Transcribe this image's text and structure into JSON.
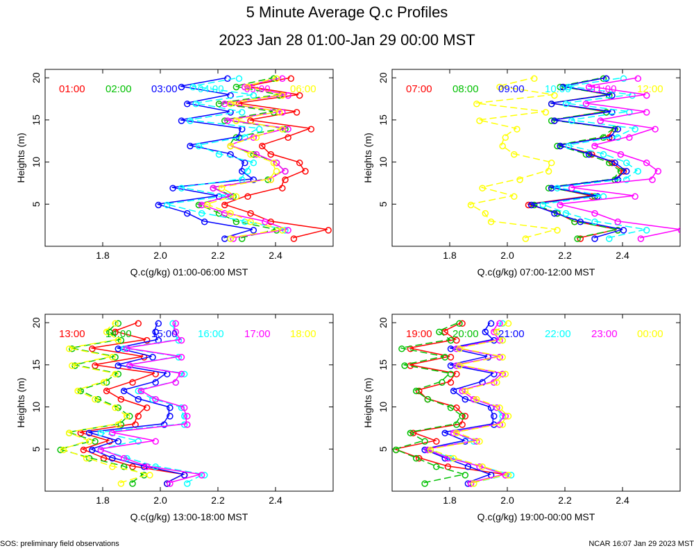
{
  "title": "5 Minute Average Q.c Profiles",
  "subtitle": "2023 Jan 28 01:00-Jan 29 00:00 MST",
  "footer_left": "SOS: preliminary field observations",
  "footer_right": "NCAR 16:07 Jan 29 2023 MST",
  "colors": [
    "#ff0000",
    "#00c000",
    "#0000ff",
    "#00ffff",
    "#ff00ff",
    "#ffff00"
  ],
  "chart_data": [
    {
      "type": "line",
      "xlabel": "Q.c(g/kg) 01:00-06:00 MST",
      "ylabel": "Heights (m)",
      "xlim": [
        1.6,
        2.6
      ],
      "ylim": [
        0,
        21
      ],
      "x_ticks": [
        "1.8",
        "2.0",
        "2.2",
        "2.4"
      ],
      "y_ticks": [
        "5",
        "10",
        "15",
        "20"
      ],
      "heights": [
        1,
        2,
        3,
        4,
        5,
        6,
        7,
        8,
        9,
        10,
        11,
        12,
        13,
        14,
        15,
        16,
        17,
        18,
        19,
        20
      ],
      "series": [
        {
          "name": "01:00",
          "values": [
            2.46,
            2.58,
            2.38,
            2.31,
            2.22,
            2.3,
            2.42,
            2.43,
            2.5,
            2.48,
            2.38,
            2.35,
            2.44,
            2.52,
            2.31,
            2.47,
            2.27,
            2.48,
            2.3,
            2.45
          ]
        },
        {
          "name": "02:00",
          "values": [
            2.28,
            2.4,
            2.26,
            2.2,
            2.13,
            2.25,
            2.18,
            2.37,
            2.43,
            2.4,
            2.32,
            2.24,
            2.26,
            2.43,
            2.22,
            2.39,
            2.2,
            2.41,
            2.26,
            2.39
          ]
        },
        {
          "name": "03:00",
          "values": [
            2.22,
            2.32,
            2.15,
            2.09,
            1.99,
            2.2,
            2.04,
            2.32,
            2.28,
            2.29,
            2.24,
            2.1,
            2.27,
            2.28,
            2.07,
            2.24,
            2.09,
            2.24,
            2.07,
            2.23
          ]
        },
        {
          "name": "04:00",
          "values": [
            2.24,
            2.43,
            2.29,
            2.14,
            2.02,
            2.23,
            2.07,
            2.28,
            2.3,
            2.32,
            2.2,
            2.13,
            2.29,
            2.34,
            2.1,
            2.28,
            2.12,
            2.32,
            2.11,
            2.27
          ]
        },
        {
          "name": "05:00",
          "values": [
            2.25,
            2.44,
            2.36,
            2.22,
            2.14,
            2.24,
            2.18,
            2.38,
            2.43,
            2.4,
            2.33,
            2.24,
            2.32,
            2.44,
            2.23,
            2.42,
            2.22,
            2.44,
            2.29,
            2.42
          ]
        },
        {
          "name": "06:00",
          "values": [
            2.24,
            2.42,
            2.31,
            2.24,
            2.16,
            2.26,
            2.21,
            2.38,
            2.4,
            2.39,
            2.31,
            2.24,
            2.33,
            2.42,
            2.26,
            2.41,
            2.24,
            2.42,
            2.3,
            2.4
          ]
        }
      ]
    },
    {
      "type": "line",
      "xlabel": "Q.c(g/kg) 07:00-12:00 MST",
      "ylabel": "Heights (m)",
      "xlim": [
        1.6,
        2.6
      ],
      "ylim": [
        0,
        21
      ],
      "x_ticks": [
        "1.8",
        "2.0",
        "2.2",
        "2.4"
      ],
      "y_ticks": [
        "5",
        "10",
        "15",
        "20"
      ],
      "heights": [
        1,
        2,
        3,
        4,
        5,
        6,
        7,
        8,
        9,
        10,
        11,
        12,
        13,
        14,
        15,
        16,
        17,
        18,
        19,
        20
      ],
      "series": [
        {
          "name": "07:00",
          "values": [
            2.25,
            2.38,
            2.23,
            2.17,
            2.07,
            2.29,
            2.15,
            2.38,
            2.4,
            2.36,
            2.29,
            2.18,
            2.35,
            2.37,
            2.16,
            2.34,
            2.15,
            2.35,
            2.19,
            2.34
          ]
        },
        {
          "name": "08:00",
          "values": [
            2.24,
            2.38,
            2.23,
            2.17,
            2.09,
            2.3,
            2.14,
            2.37,
            2.39,
            2.35,
            2.27,
            2.17,
            2.33,
            2.37,
            2.15,
            2.34,
            2.15,
            2.35,
            2.18,
            2.33
          ]
        },
        {
          "name": "09:00",
          "values": [
            2.3,
            2.4,
            2.25,
            2.16,
            2.08,
            2.31,
            2.15,
            2.38,
            2.41,
            2.37,
            2.28,
            2.18,
            2.36,
            2.38,
            2.16,
            2.36,
            2.15,
            2.36,
            2.19,
            2.34
          ]
        },
        {
          "name": "10:00",
          "values": [
            2.35,
            2.48,
            2.3,
            2.2,
            2.12,
            2.33,
            2.17,
            2.41,
            2.45,
            2.41,
            2.33,
            2.21,
            2.38,
            2.44,
            2.22,
            2.42,
            2.2,
            2.43,
            2.21,
            2.4
          ]
        },
        {
          "name": "11:00",
          "values": [
            2.46,
            2.6,
            2.38,
            2.3,
            2.18,
            2.44,
            2.22,
            2.5,
            2.52,
            2.48,
            2.39,
            2.3,
            2.42,
            2.51,
            2.32,
            2.48,
            2.27,
            2.48,
            2.28,
            2.45
          ]
        },
        {
          "name": "12:00",
          "values": [
            2.06,
            2.17,
            1.94,
            1.92,
            1.87,
            2.02,
            1.91,
            2.04,
            2.14,
            2.15,
            2.02,
            1.98,
            1.99,
            2.03,
            1.9,
            2.13,
            1.89,
            2.16,
            1.97,
            2.09
          ]
        }
      ]
    },
    {
      "type": "line",
      "xlabel": "Q.c(g/kg) 13:00-18:00 MST",
      "ylabel": "Heights (m)",
      "xlim": [
        1.6,
        2.6
      ],
      "ylim": [
        0,
        21
      ],
      "x_ticks": [
        "1.8",
        "2.0",
        "2.2",
        "2.4"
      ],
      "y_ticks": [
        "5",
        "10",
        "15",
        "20"
      ],
      "heights": [
        1,
        2,
        3,
        4,
        5,
        6,
        7,
        8,
        9,
        10,
        11,
        12,
        13,
        14,
        15,
        16,
        17,
        18,
        19,
        20
      ],
      "series": [
        {
          "name": "13:00",
          "values": [
            2.02,
            2.08,
            1.9,
            1.8,
            1.73,
            1.82,
            1.72,
            1.91,
            1.92,
            1.95,
            1.86,
            1.81,
            1.9,
            1.98,
            1.77,
            1.94,
            1.76,
            1.95,
            1.84,
            1.92
          ]
        },
        {
          "name": "14:00",
          "values": [
            1.9,
            1.94,
            1.87,
            1.75,
            1.65,
            1.77,
            1.68,
            1.86,
            1.89,
            1.85,
            1.78,
            1.72,
            1.81,
            1.85,
            1.7,
            1.84,
            1.69,
            1.86,
            1.82,
            1.85
          ]
        },
        {
          "name": "15:00",
          "values": [
            2.02,
            2.08,
            1.94,
            1.83,
            1.76,
            1.85,
            1.75,
            2.01,
            2.03,
            2.03,
            1.92,
            1.87,
            1.98,
            2.02,
            1.85,
            1.97,
            1.85,
            1.99,
            1.98,
            1.99
          ]
        },
        {
          "name": "16:00",
          "values": [
            2.09,
            2.15,
            1.98,
            1.88,
            1.79,
            1.92,
            1.79,
            2.08,
            2.08,
            2.07,
            1.97,
            1.92,
            2.05,
            2.08,
            1.89,
            2.06,
            1.87,
            2.06,
            2.05,
            2.04
          ]
        },
        {
          "name": "17:00",
          "values": [
            2.03,
            2.14,
            1.95,
            1.87,
            1.79,
            1.98,
            1.83,
            2.09,
            2.09,
            2.08,
            1.98,
            1.93,
            2.05,
            2.07,
            1.89,
            2.07,
            1.88,
            2.07,
            2.05,
            2.05
          ]
        },
        {
          "name": "18:00",
          "values": [
            1.86,
            1.96,
            1.83,
            1.74,
            1.66,
            1.75,
            1.68,
            1.85,
            1.88,
            1.84,
            1.77,
            1.71,
            1.8,
            1.84,
            1.69,
            1.83,
            1.68,
            1.85,
            1.81,
            1.84
          ]
        }
      ]
    },
    {
      "type": "line",
      "xlabel": "Q.c(g/kg) 19:00-00:00 MST",
      "ylabel": "Heights (m)",
      "xlim": [
        1.6,
        2.6
      ],
      "ylim": [
        0,
        21
      ],
      "x_ticks": [
        "1.8",
        "2.0",
        "2.2",
        "2.4"
      ],
      "y_ticks": [
        "5",
        "10",
        "15",
        "20"
      ],
      "heights": [
        1,
        2,
        3,
        4,
        5,
        6,
        7,
        8,
        9,
        10,
        11,
        12,
        13,
        14,
        15,
        16,
        17,
        18,
        19,
        20
      ],
      "series": [
        {
          "name": "19:00",
          "values": [
            1.87,
            1.99,
            1.79,
            1.69,
            1.61,
            1.75,
            1.67,
            1.84,
            1.85,
            1.82,
            1.72,
            1.69,
            1.8,
            1.82,
            1.66,
            1.8,
            1.66,
            1.82,
            1.78,
            1.84
          ]
        },
        {
          "name": "20:00",
          "values": [
            1.71,
            1.85,
            1.75,
            1.68,
            1.61,
            1.71,
            1.66,
            1.82,
            1.84,
            1.8,
            1.72,
            1.68,
            1.77,
            1.8,
            1.64,
            1.78,
            1.63,
            1.8,
            1.76,
            1.83
          ]
        },
        {
          "name": "21:00",
          "values": [
            1.86,
            1.94,
            1.86,
            1.78,
            1.71,
            1.85,
            1.78,
            1.95,
            1.95,
            1.94,
            1.85,
            1.81,
            1.91,
            1.95,
            1.8,
            1.93,
            1.8,
            1.95,
            1.92,
            1.94
          ]
        },
        {
          "name": "22:00",
          "values": [
            1.88,
            2.01,
            1.9,
            1.8,
            1.72,
            1.88,
            1.81,
            1.97,
            1.98,
            1.96,
            1.88,
            1.84,
            1.95,
            1.98,
            1.82,
            1.97,
            1.82,
            1.98,
            1.96,
            1.98
          ]
        },
        {
          "name": "23:00",
          "values": [
            1.87,
            1.99,
            1.9,
            1.79,
            1.72,
            1.89,
            1.81,
            1.97,
            1.99,
            1.96,
            1.88,
            1.84,
            1.95,
            1.98,
            1.82,
            1.97,
            1.82,
            1.97,
            1.95,
            1.97
          ]
        },
        {
          "name": "00:00",
          "values": [
            1.88,
            2.0,
            1.91,
            1.81,
            1.73,
            1.9,
            1.82,
            1.98,
            2.0,
            1.97,
            1.89,
            1.85,
            1.96,
            1.99,
            1.83,
            1.98,
            1.83,
            1.98,
            1.96,
            2.0
          ]
        }
      ]
    }
  ]
}
